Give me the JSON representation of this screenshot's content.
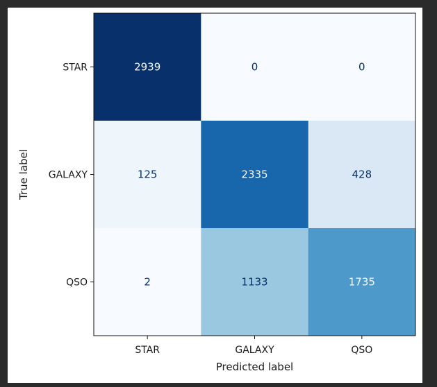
{
  "chart_data": {
    "type": "heatmap",
    "title": "",
    "xlabel": "Predicted label",
    "ylabel": "True label",
    "x_categories": [
      "STAR",
      "GALAXY",
      "QSO"
    ],
    "y_categories": [
      "STAR",
      "GALAXY",
      "QSO"
    ],
    "values": [
      [
        2939,
        0,
        0
      ],
      [
        125,
        2335,
        428
      ],
      [
        2,
        1133,
        1735
      ]
    ],
    "colormap": "Blues",
    "value_range": [
      0,
      2939
    ],
    "grid": false,
    "colorbar": false
  }
}
